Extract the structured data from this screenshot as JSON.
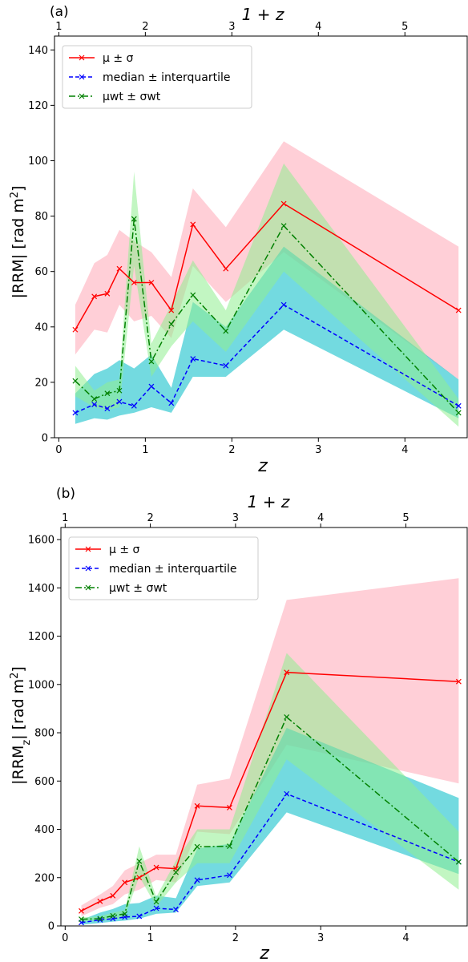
{
  "chart_data": [
    {
      "type": "line",
      "panel_label": "(a)",
      "xlabel": "z",
      "ylabel_parts": [
        "|RRM| [rad m",
        "2",
        "]"
      ],
      "top_xlabel": "1 + z",
      "xlim": [
        -0.05,
        4.72
      ],
      "ylim": [
        0,
        145
      ],
      "xticks": [
        0,
        1,
        2,
        3,
        4
      ],
      "yticks": [
        0,
        20,
        40,
        60,
        80,
        100,
        120,
        140
      ],
      "top_ticks": [
        1,
        2,
        3,
        4,
        5
      ],
      "x": [
        0.19,
        0.41,
        0.56,
        0.7,
        0.87,
        1.07,
        1.3,
        1.55,
        1.93,
        2.6,
        4.62
      ],
      "series": [
        {
          "name": "μ ± σ",
          "color": "#ff0000",
          "dash": "",
          "fill": "#ffb6c1",
          "values": [
            39,
            51,
            52,
            61,
            56,
            56,
            46,
            77,
            61,
            84.5,
            46
          ],
          "lower": [
            30,
            39,
            38,
            48,
            42,
            44,
            36,
            62,
            49,
            67,
            21
          ],
          "upper": [
            48,
            63,
            66,
            75,
            71,
            67,
            58,
            90,
            76,
            107,
            69
          ]
        },
        {
          "name": "median ± interquartile",
          "color": "#0000ff",
          "dash": "5,3",
          "fill": "#00bcc6",
          "values": [
            9,
            12,
            10.5,
            13,
            11.5,
            18.5,
            12.5,
            28.5,
            26,
            48,
            11.5
          ],
          "lower": [
            5,
            7,
            6.5,
            8,
            9,
            11,
            9,
            22,
            22,
            39,
            7
          ],
          "upper": [
            16,
            23,
            25,
            28,
            25,
            30,
            18,
            49,
            40,
            69,
            21
          ]
        },
        {
          "name": "μwt ± σwt",
          "color": "#008000",
          "dash": "8,3,2,3",
          "fill": "#90ee90",
          "values": [
            20.5,
            14,
            16,
            17,
            79,
            27.5,
            41,
            51.5,
            38.5,
            76.5,
            9
          ],
          "lower": [
            15,
            11,
            10,
            11,
            62,
            22,
            33,
            42,
            31,
            60,
            4
          ],
          "upper": [
            26,
            17,
            20,
            21,
            96,
            34,
            48,
            64,
            46,
            99,
            14
          ]
        }
      ],
      "legend_position": "upper-left"
    },
    {
      "type": "line",
      "panel_label": "(b)",
      "xlabel": "z",
      "ylabel_parts": [
        "|RRM",
        "z",
        "| [rad m",
        "2",
        "]"
      ],
      "top_xlabel": "1 + z",
      "xlim": [
        -0.05,
        4.72
      ],
      "ylim": [
        0,
        1650
      ],
      "xticks": [
        0,
        1,
        2,
        3,
        4
      ],
      "yticks": [
        0,
        200,
        400,
        600,
        800,
        1000,
        1200,
        1400,
        1600
      ],
      "top_ticks": [
        1,
        2,
        3,
        4,
        5
      ],
      "x": [
        0.19,
        0.41,
        0.56,
        0.7,
        0.87,
        1.07,
        1.3,
        1.55,
        1.93,
        2.6,
        4.62
      ],
      "series": [
        {
          "name": "μ ± σ",
          "color": "#ff0000",
          "dash": "",
          "fill": "#ffb6c1",
          "values": [
            62,
            102,
            125,
            180,
            200,
            242,
            237,
            497,
            490,
            1050,
            1012
          ],
          "lower": [
            40,
            75,
            90,
            130,
            150,
            190,
            180,
            390,
            380,
            750,
            590
          ],
          "upper": [
            85,
            130,
            165,
            230,
            260,
            295,
            295,
            585,
            610,
            1350,
            1440
          ]
        },
        {
          "name": "median ± interquartile",
          "color": "#0000ff",
          "dash": "5,3",
          "fill": "#00bcc6",
          "values": [
            14,
            25,
            30,
            37,
            40,
            73,
            68,
            190,
            210,
            547,
            265
          ],
          "lower": [
            5,
            12,
            18,
            22,
            30,
            50,
            55,
            165,
            180,
            470,
            215
          ],
          "upper": [
            25,
            55,
            70,
            90,
            95,
            125,
            115,
            320,
            340,
            820,
            530
          ]
        },
        {
          "name": "μwt ± σwt",
          "color": "#008000",
          "dash": "8,3,2,3",
          "fill": "#90ee90",
          "values": [
            28,
            30,
            42,
            50,
            268,
            100,
            222,
            328,
            330,
            865,
            265
          ],
          "lower": [
            20,
            22,
            30,
            35,
            205,
            80,
            180,
            260,
            260,
            690,
            150
          ],
          "upper": [
            35,
            40,
            55,
            65,
            330,
            120,
            270,
            400,
            400,
            1130,
            390
          ]
        }
      ],
      "legend_position": "upper-left"
    }
  ]
}
